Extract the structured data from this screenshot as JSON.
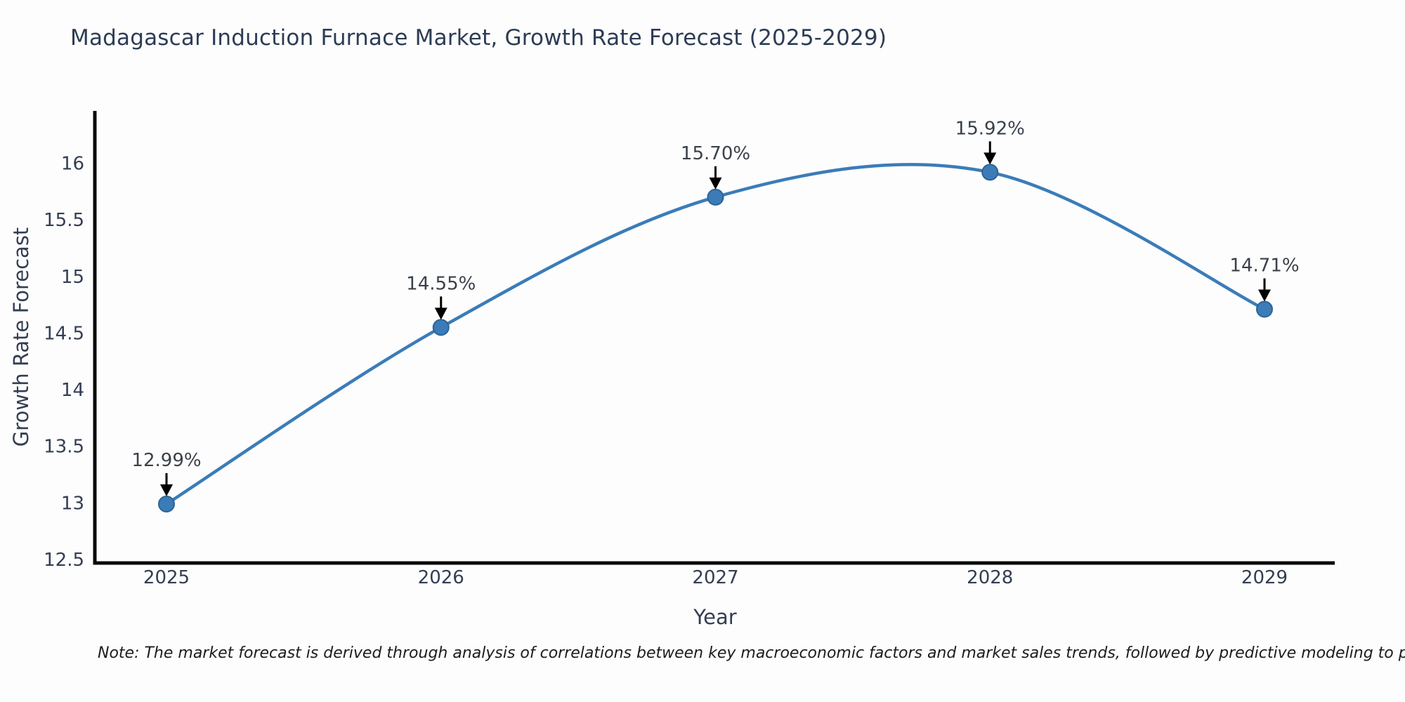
{
  "note": "Note: The market forecast is derived through analysis of correlations between key macroeconomic factors and market sales trends, followed by predictive modeling to project future sales",
  "chart_data": {
    "type": "line",
    "title": "Madagascar Induction Furnace Market, Growth Rate Forecast (2025-2029)",
    "xlabel": "Year",
    "ylabel": "Growth Rate Forecast",
    "x": [
      2025,
      2026,
      2027,
      2028,
      2029
    ],
    "values": [
      12.99,
      14.55,
      15.7,
      15.92,
      14.71
    ],
    "point_labels": [
      "12.99%",
      "14.55%",
      "15.70%",
      "15.92%",
      "14.71%"
    ],
    "xticks": [
      "2025",
      "2026",
      "2027",
      "2028",
      "2029"
    ],
    "yticks": [
      12.5,
      13,
      13.5,
      14,
      14.5,
      15,
      15.5,
      16
    ],
    "ylim": [
      12.5,
      16.45
    ],
    "curve": "spline",
    "grid": false,
    "legend": "none",
    "colors": {
      "line": "#3b7cb8",
      "marker_fill": "#3b7cb8",
      "marker_edge": "#2d6395",
      "axis": "#0a0a0a",
      "tick_text": "#333e52",
      "annotation_text": "#3a4149",
      "arrow": "#000000"
    }
  }
}
